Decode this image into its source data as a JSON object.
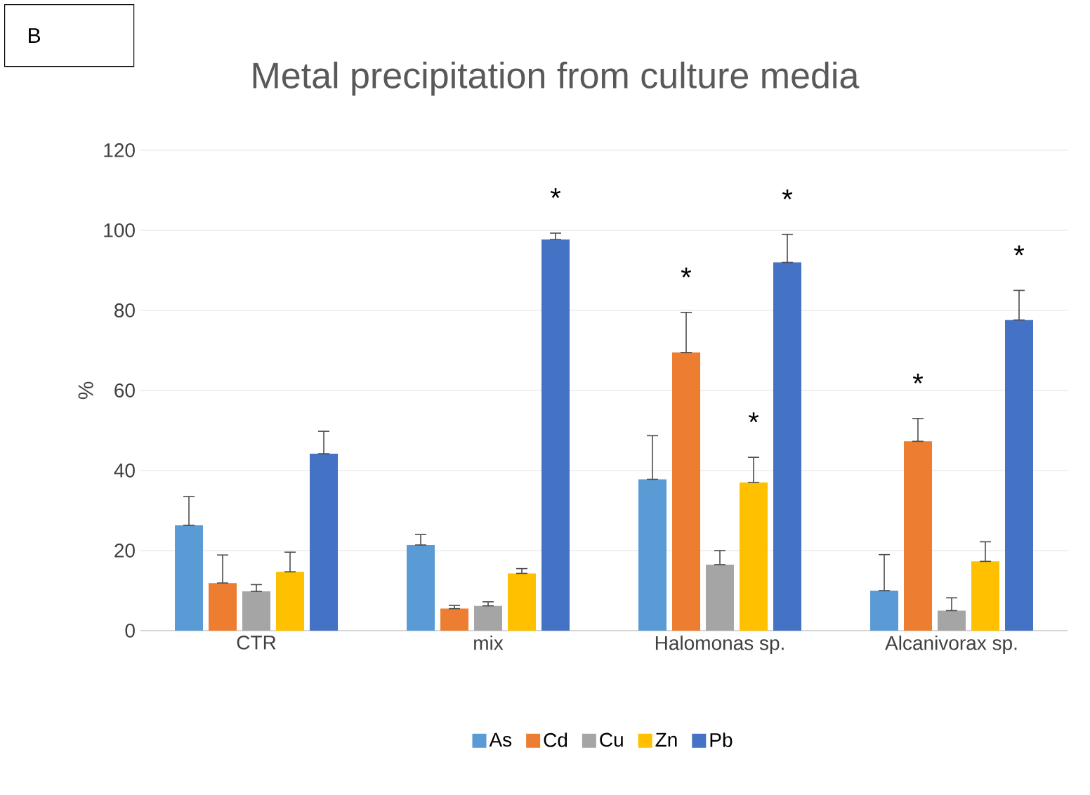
{
  "chart_data": {
    "type": "bar",
    "title": "Metal precipitation from culture media",
    "ylabel": "%",
    "annotations": [
      "B"
    ],
    "categories": [
      "CTR",
      "mix",
      "Halomonas sp.",
      "Alcanivorax sp."
    ],
    "ylim": [
      0,
      120
    ],
    "yticks": [
      0,
      20,
      40,
      60,
      80,
      100,
      120
    ],
    "grid": "y",
    "legend": "bottom",
    "series": [
      {
        "name": "As",
        "color": "#5b9bd5",
        "values": [
          26.3,
          21.4,
          37.8,
          10
        ],
        "errors": [
          [
            26.3,
            33.5
          ],
          [
            21.4,
            24
          ],
          [
            37.8,
            48.7
          ],
          [
            10,
            19
          ]
        ]
      },
      {
        "name": "Cd",
        "color": "#ed7d31",
        "values": [
          11.9,
          5.5,
          69.5,
          47.3
        ],
        "errors": [
          [
            11.9,
            18.9
          ],
          [
            5.5,
            6.3
          ],
          [
            69.5,
            79.5
          ],
          [
            47.3,
            53
          ]
        ],
        "value_labels": [
          null,
          null,
          "*",
          "*"
        ]
      },
      {
        "name": "Cu",
        "color": "#a5a5a5",
        "values": [
          9.8,
          6.2,
          16.5,
          5
        ],
        "errors": [
          [
            9.8,
            11.5
          ],
          [
            6.2,
            7.2
          ],
          [
            16.5,
            20
          ],
          [
            5,
            8.2
          ]
        ]
      },
      {
        "name": "Zn",
        "color": "#ffc000",
        "values": [
          14.7,
          14.3,
          37,
          17.3
        ],
        "errors": [
          [
            14.7,
            19.6
          ],
          [
            14.3,
            15.5
          ],
          [
            37,
            43.3
          ],
          [
            17.3,
            22.2
          ]
        ],
        "value_labels": [
          null,
          null,
          "*",
          null
        ]
      },
      {
        "name": "Pb",
        "color": "#4472c4",
        "values": [
          44.2,
          97.7,
          92,
          77.6
        ],
        "errors": [
          [
            44.2,
            49.8
          ],
          [
            97.7,
            99.3
          ],
          [
            92,
            99
          ],
          [
            77.6,
            85
          ]
        ],
        "value_labels": [
          null,
          "*",
          "*",
          "*"
        ]
      }
    ]
  }
}
